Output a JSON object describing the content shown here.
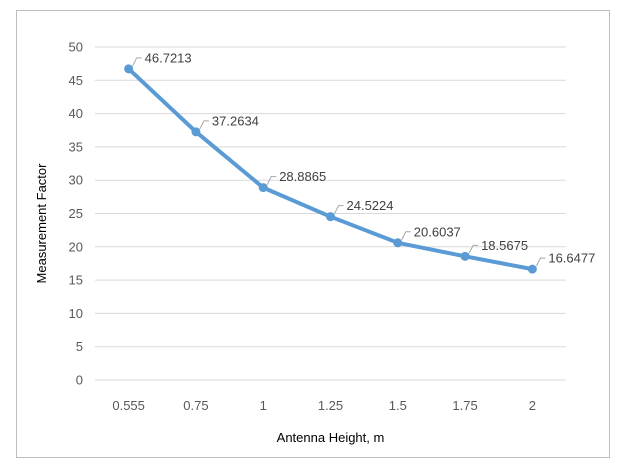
{
  "chart_data": {
    "type": "line",
    "title": "",
    "xlabel": "Antenna Height, m",
    "ylabel": "Measurement Factor",
    "categories": [
      "0.555",
      "0.75",
      "1",
      "1.25",
      "1.5",
      "1.75",
      "2"
    ],
    "series": [
      {
        "values": [
          46.7213,
          37.2634,
          28.8865,
          24.5224,
          20.6037,
          18.5675,
          16.6477
        ],
        "data_labels": [
          "46.7213",
          "37.2634",
          "28.8865",
          "24.5224",
          "20.6037",
          "18.5675",
          "16.6477"
        ],
        "color": "#5b9bd5"
      }
    ],
    "ylim": [
      0,
      50
    ],
    "yticks": [
      "0",
      "5",
      "10",
      "15",
      "20",
      "25",
      "30",
      "35",
      "40",
      "45",
      "50"
    ],
    "grid": true,
    "legend": "none",
    "gridline_color": "#d9d9d9",
    "frame_color": "#bfbfbf"
  }
}
